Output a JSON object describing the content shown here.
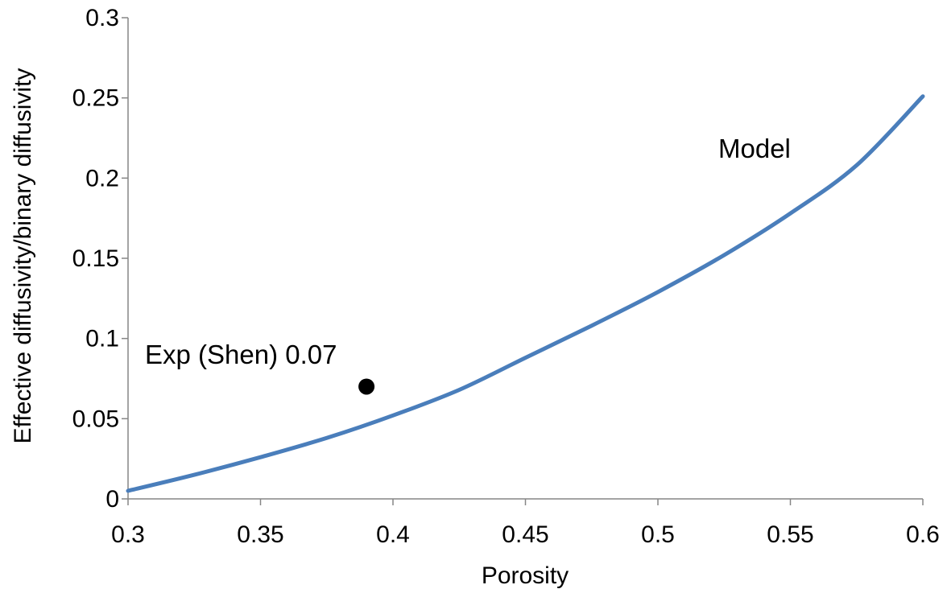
{
  "chart_data": {
    "type": "line",
    "title": "",
    "xlabel": "Porosity",
    "ylabel": "Effective diffusivity/binary diffusivity",
    "xlim": [
      0.3,
      0.6
    ],
    "ylim": [
      0,
      0.3
    ],
    "x_ticks": [
      "0.3",
      "0.35",
      "0.4",
      "0.45",
      "0.5",
      "0.55",
      "0.6"
    ],
    "y_ticks": [
      "0",
      "0.05",
      "0.1",
      "0.15",
      "0.2",
      "0.25",
      "0.3"
    ],
    "grid": false,
    "series": [
      {
        "name": "Model",
        "type": "line",
        "color": "#4a7ebb",
        "x": [
          0.3,
          0.325,
          0.35,
          0.375,
          0.4,
          0.425,
          0.45,
          0.475,
          0.5,
          0.525,
          0.55,
          0.575,
          0.6
        ],
        "y": [
          0.005,
          0.015,
          0.026,
          0.038,
          0.052,
          0.068,
          0.088,
          0.108,
          0.129,
          0.152,
          0.178,
          0.208,
          0.251
        ]
      },
      {
        "name": "Exp (Shen)",
        "type": "scatter",
        "color": "#000000",
        "x": [
          0.39
        ],
        "y": [
          0.07
        ]
      }
    ],
    "annotations": {
      "model_label": "Model",
      "exp_label": "Exp (Shen) 0.07"
    }
  }
}
